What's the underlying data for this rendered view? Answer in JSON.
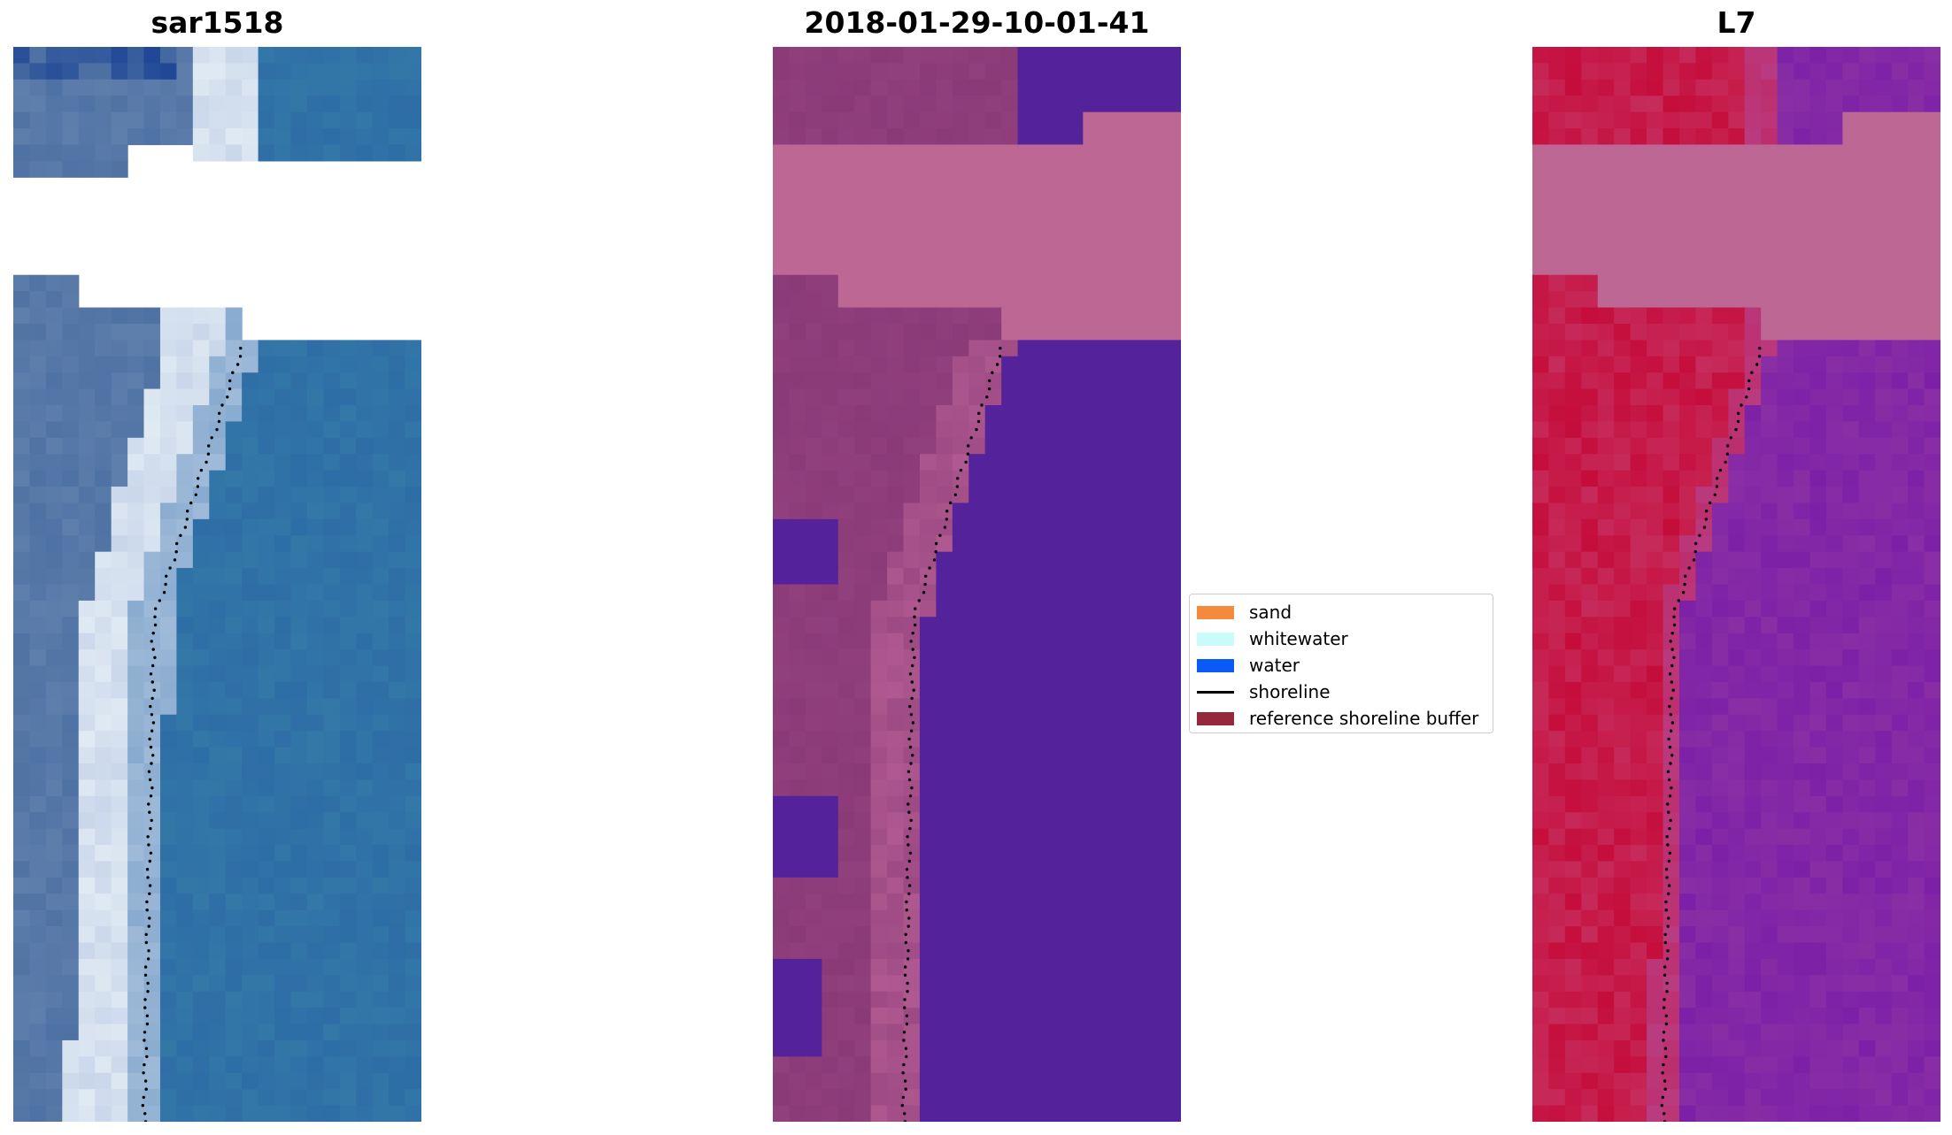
{
  "panels": [
    {
      "title": "sar1518",
      "image": "rgb-satellite-composite"
    },
    {
      "title": "2018-01-29-10-01-41",
      "image": "classified-image-overlay"
    },
    {
      "title": "L7",
      "image": "mndwi-index-image"
    }
  ],
  "legend": {
    "items": [
      {
        "label": "sand",
        "color": "#f58a3c",
        "kind": "patch"
      },
      {
        "label": "whitewater",
        "color": "#c9fbfb",
        "kind": "patch"
      },
      {
        "label": "water",
        "color": "#0a5bf5",
        "kind": "patch"
      },
      {
        "label": "shoreline",
        "color": "#000000",
        "kind": "line"
      },
      {
        "label": "reference shoreline buffer",
        "color": "#96283c",
        "kind": "patch"
      }
    ]
  },
  "colors": {
    "no_data": "#ffffff",
    "cloud_mask_overlay": "#bd6794",
    "water_class": "#54229b",
    "sand_land_class": "#8b3a78",
    "rgb_water": "#2e6da6",
    "rgb_beach": "#c9d6ea",
    "index_land": "#c50d3b",
    "index_water": "#8a2ea5",
    "shoreline_points": "#000000"
  }
}
